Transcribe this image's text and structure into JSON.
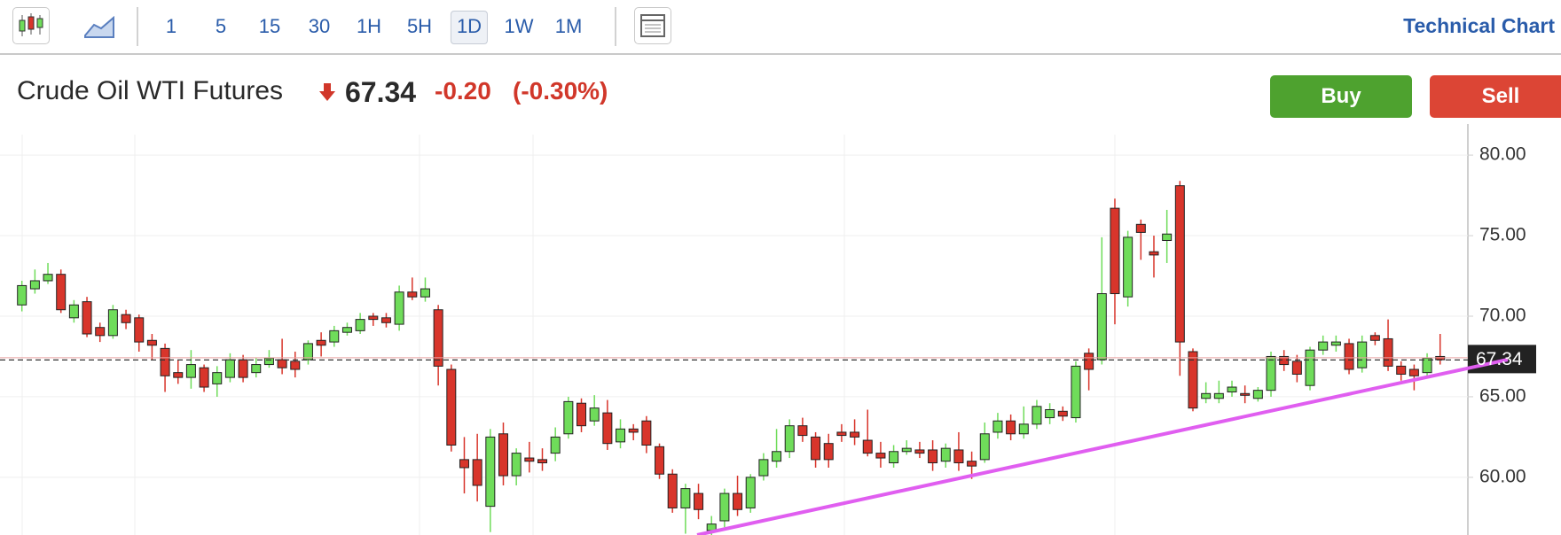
{
  "toolbar": {
    "intervals": [
      "1",
      "5",
      "15",
      "30",
      "1H",
      "5H",
      "1D",
      "1W",
      "1M"
    ],
    "active_interval": 6,
    "link": "Technical Chart"
  },
  "header": {
    "title": "Crude Oil WTI Futures",
    "price": "67.34",
    "change": "-0.20",
    "change_percent": "(-0.30%)",
    "buy": "Buy",
    "sell": "Sell"
  },
  "chart_data": {
    "type": "candlestick",
    "open": [
      70.7,
      71.7,
      72.2,
      72.6,
      69.9,
      70.9,
      69.3,
      68.8,
      70.1,
      69.9,
      68.5,
      68.0,
      66.5,
      66.2,
      66.8,
      65.8,
      66.2,
      67.3,
      66.5,
      67.0,
      67.3,
      67.2,
      67.3,
      68.5,
      68.4,
      69.0,
      69.1,
      70.0,
      69.9,
      69.5,
      71.5,
      71.2,
      70.4,
      66.7,
      61.1,
      61.1,
      58.2,
      62.7,
      60.1,
      61.2,
      61.1,
      61.5,
      62.7,
      64.6,
      63.5,
      64.0,
      62.2,
      63.0,
      63.5,
      61.9,
      60.2,
      58.1,
      59.0,
      56.7,
      57.3,
      59.0,
      58.1,
      60.1,
      61.0,
      61.6,
      63.2,
      62.5,
      62.1,
      62.8,
      62.8,
      62.3,
      61.5,
      60.9,
      61.6,
      61.7,
      61.7,
      61.0,
      61.7,
      61.0,
      61.1,
      62.8,
      63.5,
      62.7,
      63.3,
      63.7,
      64.1,
      63.7,
      67.7,
      67.3,
      76.7,
      71.2,
      75.7,
      74.0,
      74.7,
      78.1,
      67.8,
      64.9,
      64.9,
      65.3,
      65.2,
      64.9,
      65.4,
      67.5,
      67.2,
      65.7,
      67.9,
      68.2,
      68.3,
      66.8,
      68.8,
      68.6,
      66.9,
      66.7,
      66.5,
      67.5
    ],
    "high": [
      72.2,
      72.9,
      73.3,
      72.9,
      71.0,
      71.2,
      69.6,
      70.7,
      70.4,
      70.1,
      68.9,
      68.3,
      67.3,
      67.9,
      67.0,
      66.9,
      67.7,
      67.6,
      67.4,
      67.9,
      68.6,
      67.8,
      68.5,
      69.0,
      69.4,
      69.6,
      70.2,
      70.2,
      70.2,
      71.9,
      72.4,
      72.4,
      70.7,
      67.0,
      62.5,
      62.7,
      63.0,
      63.4,
      61.8,
      62.2,
      61.8,
      63.1,
      65.0,
      64.9,
      65.1,
      64.8,
      63.6,
      63.3,
      63.8,
      62.1,
      60.5,
      59.6,
      59.6,
      57.6,
      59.3,
      60.1,
      60.2,
      61.5,
      63.0,
      63.6,
      63.7,
      62.8,
      62.7,
      63.3,
      63.6,
      64.2,
      62.2,
      62.0,
      62.3,
      62.2,
      62.3,
      62.1,
      62.8,
      61.6,
      63.4,
      64.0,
      63.9,
      64.4,
      64.8,
      64.6,
      64.4,
      67.2,
      68.0,
      74.9,
      77.3,
      75.3,
      76.0,
      75.0,
      76.6,
      78.4,
      68.0,
      65.9,
      66.0,
      66.0,
      65.7,
      65.6,
      67.8,
      67.9,
      67.6,
      68.1,
      68.8,
      68.8,
      68.6,
      68.8,
      69.0,
      69.8,
      67.2,
      67.0,
      67.7,
      68.9
    ],
    "low": [
      70.3,
      71.4,
      72.0,
      70.2,
      69.6,
      68.7,
      68.4,
      68.6,
      69.2,
      67.8,
      67.3,
      65.3,
      65.8,
      65.5,
      65.3,
      65.0,
      65.9,
      65.9,
      66.2,
      66.8,
      66.4,
      66.2,
      67.0,
      67.5,
      68.1,
      68.8,
      68.9,
      69.4,
      69.3,
      69.1,
      71.0,
      70.9,
      65.7,
      61.6,
      59.0,
      58.5,
      56.6,
      59.5,
      59.5,
      60.3,
      60.4,
      61.0,
      62.4,
      62.8,
      63.2,
      61.7,
      61.8,
      62.3,
      61.5,
      59.9,
      57.8,
      56.5,
      57.4,
      56.4,
      56.9,
      57.6,
      57.8,
      59.8,
      60.6,
      61.2,
      62.2,
      60.6,
      60.6,
      62.2,
      62.0,
      61.3,
      60.6,
      60.6,
      61.4,
      61.2,
      60.4,
      60.6,
      60.4,
      59.9,
      60.9,
      62.4,
      62.3,
      62.4,
      63.0,
      63.3,
      63.5,
      63.4,
      65.4,
      67.0,
      69.5,
      70.6,
      73.5,
      72.4,
      73.3,
      66.3,
      64.1,
      64.6,
      64.6,
      65.0,
      64.6,
      64.7,
      65.0,
      66.6,
      65.9,
      65.4,
      67.6,
      67.8,
      66.4,
      66.5,
      68.2,
      66.6,
      66.0,
      65.4,
      66.2,
      67.0
    ],
    "close": [
      71.9,
      72.2,
      72.6,
      70.4,
      70.7,
      68.9,
      68.8,
      70.4,
      69.6,
      68.4,
      68.2,
      66.3,
      66.2,
      67.0,
      65.6,
      66.5,
      67.3,
      66.2,
      67.0,
      67.4,
      66.8,
      66.7,
      68.3,
      68.2,
      69.1,
      69.3,
      69.8,
      69.8,
      69.6,
      71.5,
      71.2,
      71.7,
      66.9,
      62.0,
      60.6,
      59.5,
      62.5,
      60.1,
      61.5,
      61.0,
      60.9,
      62.5,
      64.7,
      63.2,
      64.3,
      62.1,
      63.0,
      62.8,
      62.0,
      60.2,
      58.1,
      59.3,
      58.0,
      57.1,
      59.0,
      58.0,
      60.0,
      61.1,
      61.6,
      63.2,
      62.6,
      61.1,
      61.1,
      62.6,
      62.5,
      61.5,
      61.2,
      61.6,
      61.8,
      61.5,
      60.9,
      61.8,
      60.9,
      60.7,
      62.7,
      63.5,
      62.7,
      63.3,
      64.4,
      64.2,
      63.8,
      66.9,
      66.7,
      71.4,
      71.4,
      74.9,
      75.2,
      73.8,
      75.1,
      68.4,
      64.3,
      65.2,
      65.2,
      65.6,
      65.1,
      65.4,
      67.5,
      67.0,
      66.4,
      67.9,
      68.4,
      68.4,
      66.7,
      68.4,
      68.5,
      66.9,
      66.4,
      66.3,
      67.4,
      67.3
    ],
    "up_color": "#6fdc5a",
    "down_color": "#d8352b",
    "ylim": [
      56.42,
      81.27
    ],
    "yticks": [
      {
        "value": 60,
        "label": "60.00"
      },
      {
        "value": 65,
        "label": "65.00"
      },
      {
        "value": 70,
        "label": "70.00"
      },
      {
        "value": 75,
        "label": "75.00"
      },
      {
        "value": 80,
        "label": "80.00"
      }
    ],
    "grid": true,
    "last_price": {
      "value": 67.34,
      "label": "67.34"
    }
  }
}
